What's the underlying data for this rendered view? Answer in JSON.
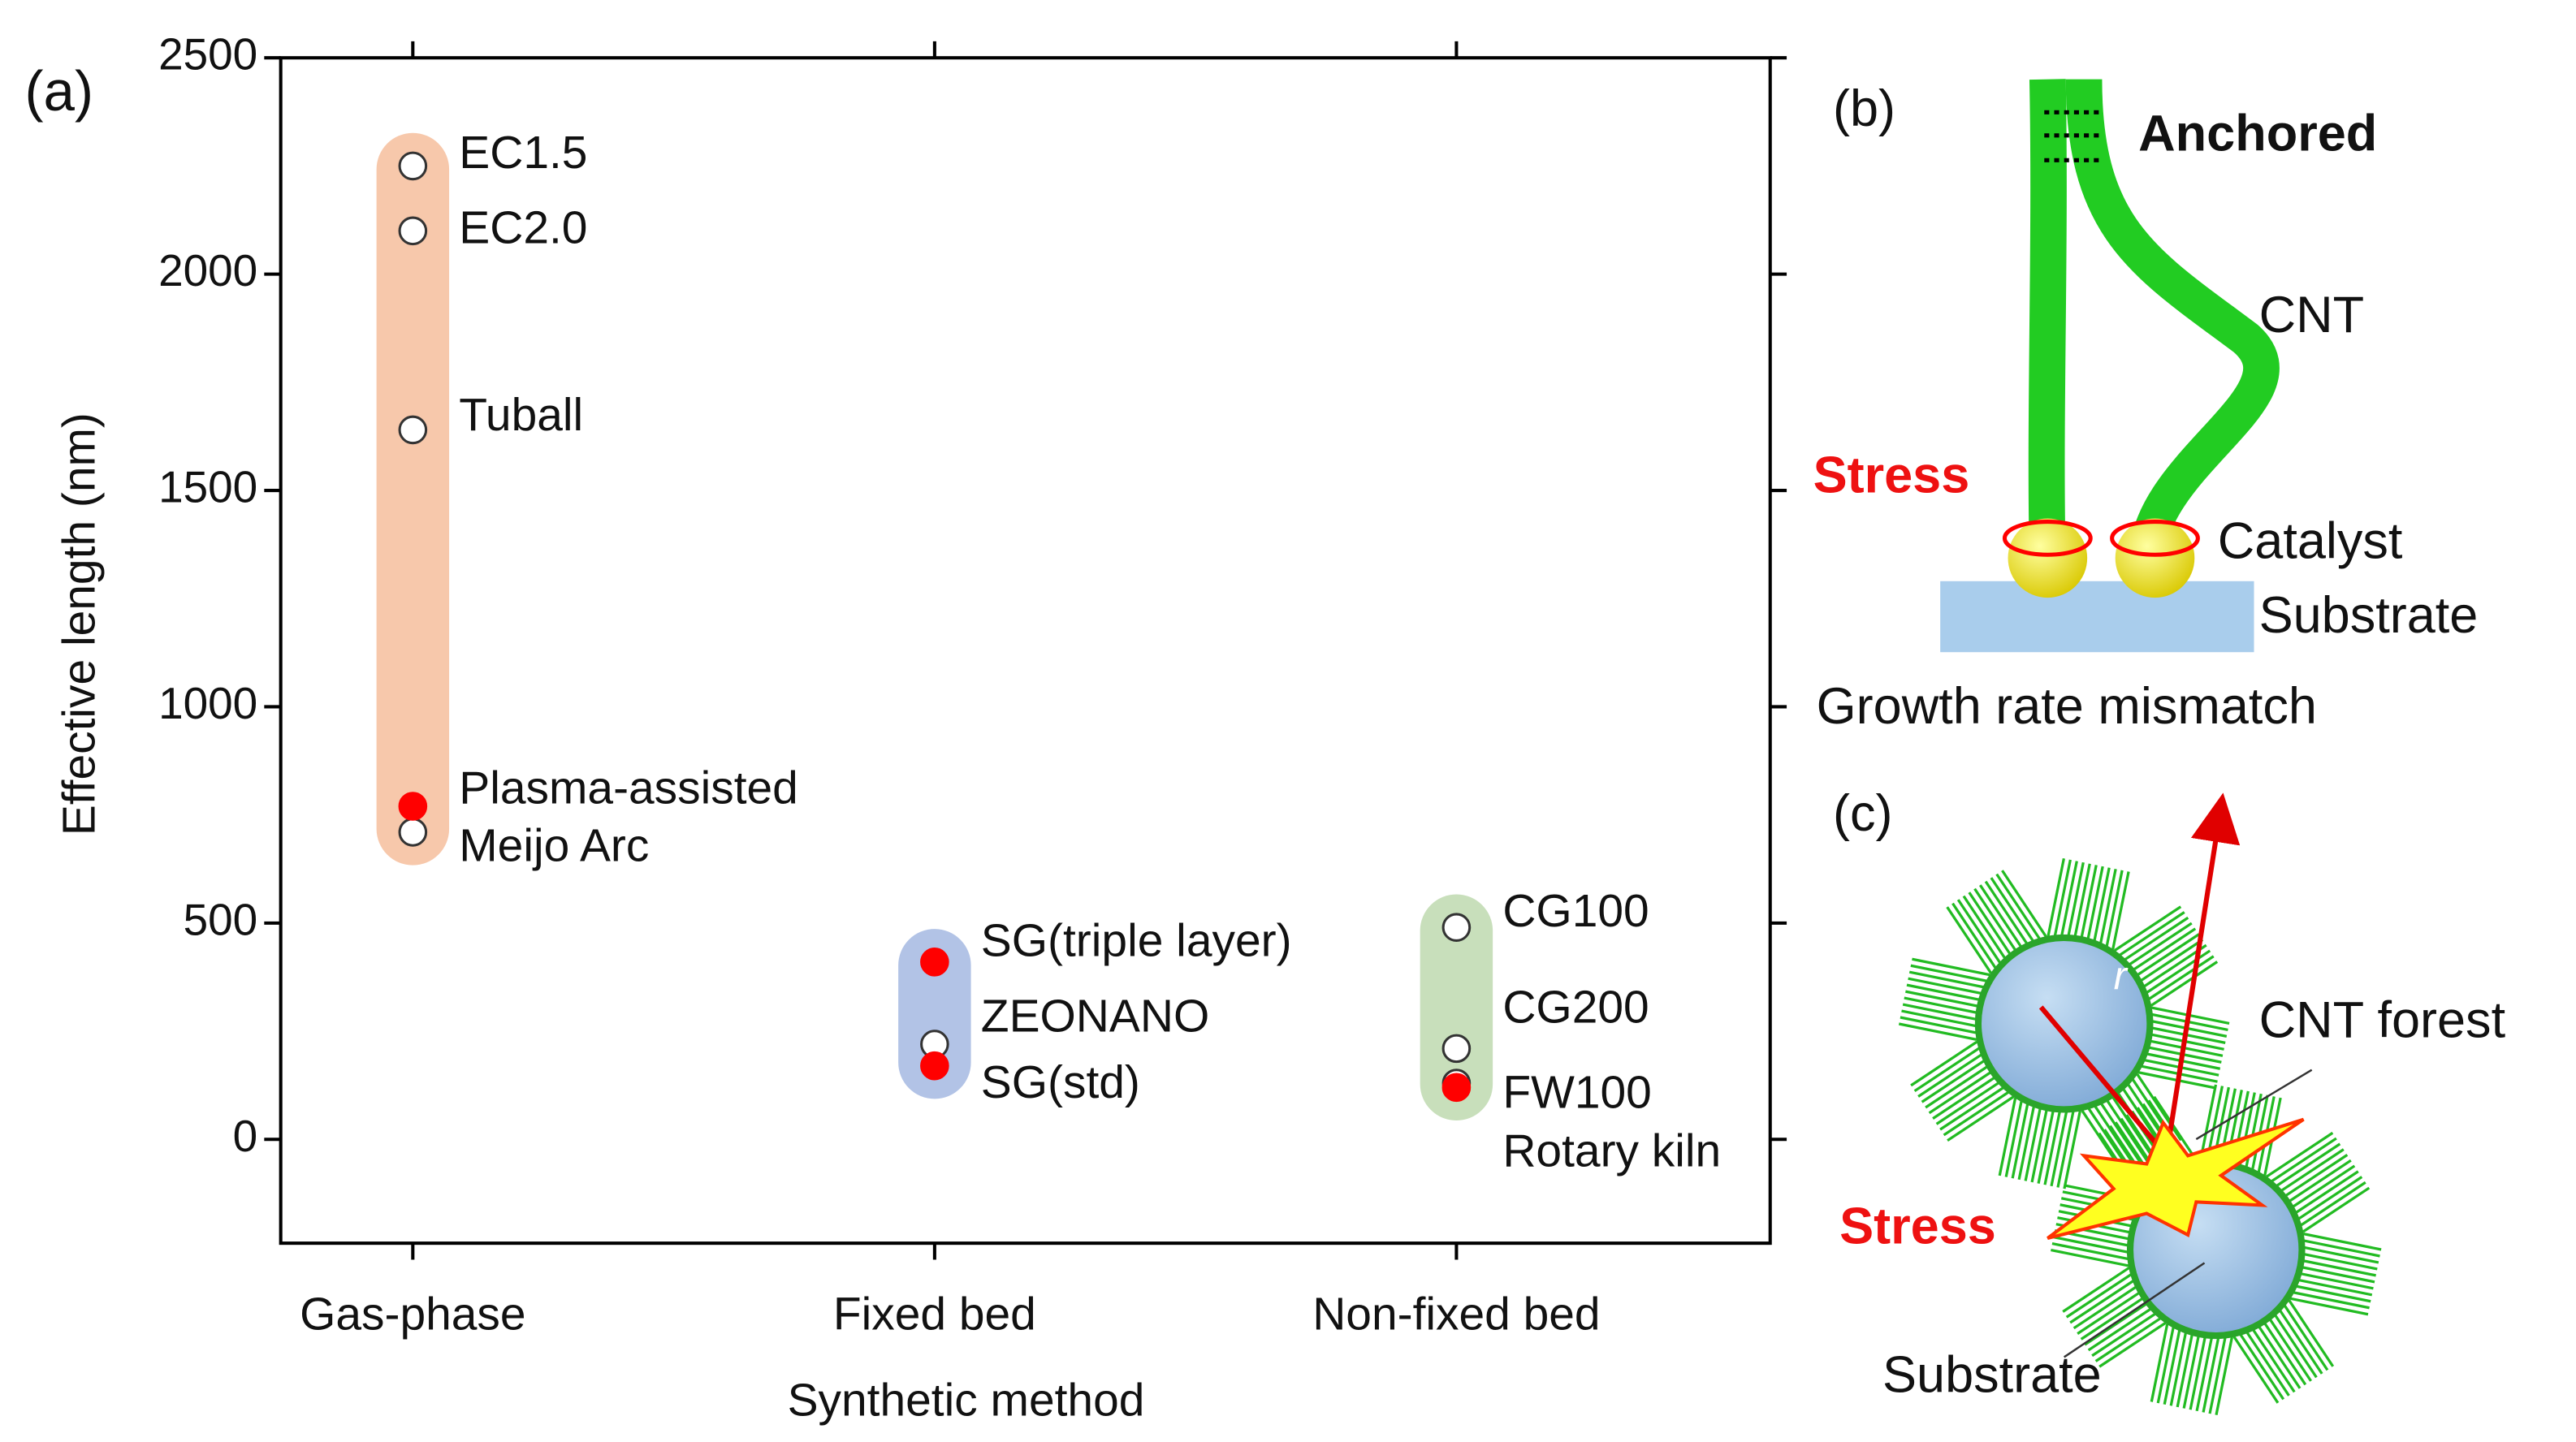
{
  "chart_data": {
    "type": "scatter",
    "panel_label": "(a)",
    "x_label": "Synthetic method",
    "y_label": "Effective length (nm)",
    "categories": [
      "Gas-phase",
      "Fixed bed",
      "Non-fixed bed"
    ],
    "group_colors": [
      "#f7c8ab",
      "#b2c3e6",
      "#c8dfbb"
    ],
    "ylim": [
      -240,
      2500
    ],
    "yticks": [
      0,
      500,
      1000,
      1500,
      2000,
      2500
    ],
    "points": [
      {
        "label": "EC1.5",
        "category": 0,
        "value": 2250,
        "color": "#ffffff"
      },
      {
        "label": "EC2.0",
        "category": 0,
        "value": 2100,
        "color": "#ffffff"
      },
      {
        "label": "Tuball",
        "category": 0,
        "value": 1640,
        "color": "#ffffff"
      },
      {
        "label": "Plasma-assisted",
        "category": 0,
        "value": 770,
        "color": "#ff0000"
      },
      {
        "label": "Meijo Arc",
        "category": 0,
        "value": 710,
        "color": "#ffffff"
      },
      {
        "label": "SG(triple layer)",
        "category": 1,
        "value": 410,
        "color": "#ff0000"
      },
      {
        "label": "ZEONANO",
        "category": 1,
        "value": 220,
        "color": "#ffffff"
      },
      {
        "label": "SG(std)",
        "category": 1,
        "value": 170,
        "color": "#ff0000"
      },
      {
        "label": "CG100",
        "category": 2,
        "value": 490,
        "color": "#ffffff"
      },
      {
        "label": "CG200",
        "category": 2,
        "value": 210,
        "color": "#ffffff"
      },
      {
        "label": "FW100",
        "category": 2,
        "value": 120,
        "color": "#ff0000"
      },
      {
        "label": "Rotary kiln",
        "category": 2,
        "value": 130,
        "color": "#ffffff"
      }
    ]
  },
  "panel_b": {
    "label": "(b)",
    "anchored": "Anchored",
    "cnt": "CNT",
    "stress": "Stress",
    "catalyst": "Catalyst",
    "substrate": "Substrate",
    "caption": "Growth rate mismatch"
  },
  "panel_c": {
    "label": "(c)",
    "radius": "r",
    "cnt_forest": "CNT forest",
    "stress": "Stress",
    "substrate": "Substrate"
  }
}
